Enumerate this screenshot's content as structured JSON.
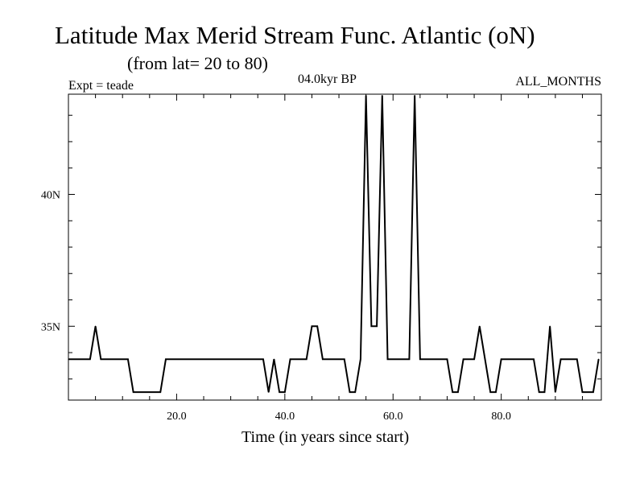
{
  "chart_data": {
    "type": "line",
    "title": "Latitude Max Merid Stream Func. Atlantic (oN)",
    "subtitle": "(from lat= 20 to 80)",
    "expt_label": "Expt = teade",
    "period_label": "04.0kyr BP",
    "months_label": "ALL_MONTHS",
    "xlabel": "Time (in years since start)",
    "ylabel": "",
    "xlim": [
      0,
      98.5
    ],
    "ylim": [
      32.2,
      43.8
    ],
    "x_ticks": [
      20,
      40,
      60,
      80
    ],
    "x_tick_labels": [
      "20.0",
      "40.0",
      "60.0",
      "80.0"
    ],
    "y_ticks": [
      35,
      40
    ],
    "y_tick_labels": [
      "35N",
      "40N"
    ],
    "grid": false,
    "series": [
      {
        "name": "",
        "color": "#000000",
        "x": [
          0,
          1,
          2,
          3,
          4,
          5,
          6,
          7,
          8,
          9,
          10,
          11,
          12,
          13,
          14,
          15,
          16,
          17,
          18,
          19,
          20,
          21,
          22,
          23,
          24,
          25,
          26,
          27,
          28,
          29,
          30,
          31,
          32,
          33,
          34,
          35,
          36,
          37,
          38,
          39,
          40,
          41,
          42,
          43,
          44,
          45,
          46,
          47,
          48,
          49,
          50,
          51,
          52,
          53,
          54,
          55,
          56,
          57,
          58,
          59,
          60,
          61,
          62,
          63,
          64,
          65,
          66,
          67,
          68,
          69,
          70,
          71,
          72,
          73,
          74,
          75,
          76,
          77,
          78,
          79,
          80,
          81,
          82,
          83,
          84,
          85,
          86,
          87,
          88,
          89,
          90,
          91,
          92,
          93,
          94,
          95,
          96,
          97,
          98
        ],
        "values": [
          33.75,
          33.75,
          33.75,
          33.75,
          33.75,
          35.0,
          33.75,
          33.75,
          33.75,
          33.75,
          33.75,
          33.75,
          32.5,
          32.5,
          32.5,
          32.5,
          32.5,
          32.5,
          33.75,
          33.75,
          33.75,
          33.75,
          33.75,
          33.75,
          33.75,
          33.75,
          33.75,
          33.75,
          33.75,
          33.75,
          33.75,
          33.75,
          33.75,
          33.75,
          33.75,
          33.75,
          33.75,
          32.5,
          33.75,
          32.5,
          32.5,
          33.75,
          33.75,
          33.75,
          33.75,
          35.0,
          35.0,
          33.75,
          33.75,
          33.75,
          33.75,
          33.75,
          32.5,
          32.5,
          33.75,
          43.75,
          35.0,
          35.0,
          43.75,
          33.75,
          33.75,
          33.75,
          33.75,
          33.75,
          43.75,
          33.75,
          33.75,
          33.75,
          33.75,
          33.75,
          33.75,
          32.5,
          32.5,
          33.75,
          33.75,
          33.75,
          35.0,
          33.75,
          32.5,
          32.5,
          33.75,
          33.75,
          33.75,
          33.75,
          33.75,
          33.75,
          33.75,
          32.5,
          32.5,
          35.0,
          32.5,
          33.75,
          33.75,
          33.75,
          33.75,
          32.5,
          32.5,
          32.5,
          33.75
        ]
      }
    ]
  }
}
